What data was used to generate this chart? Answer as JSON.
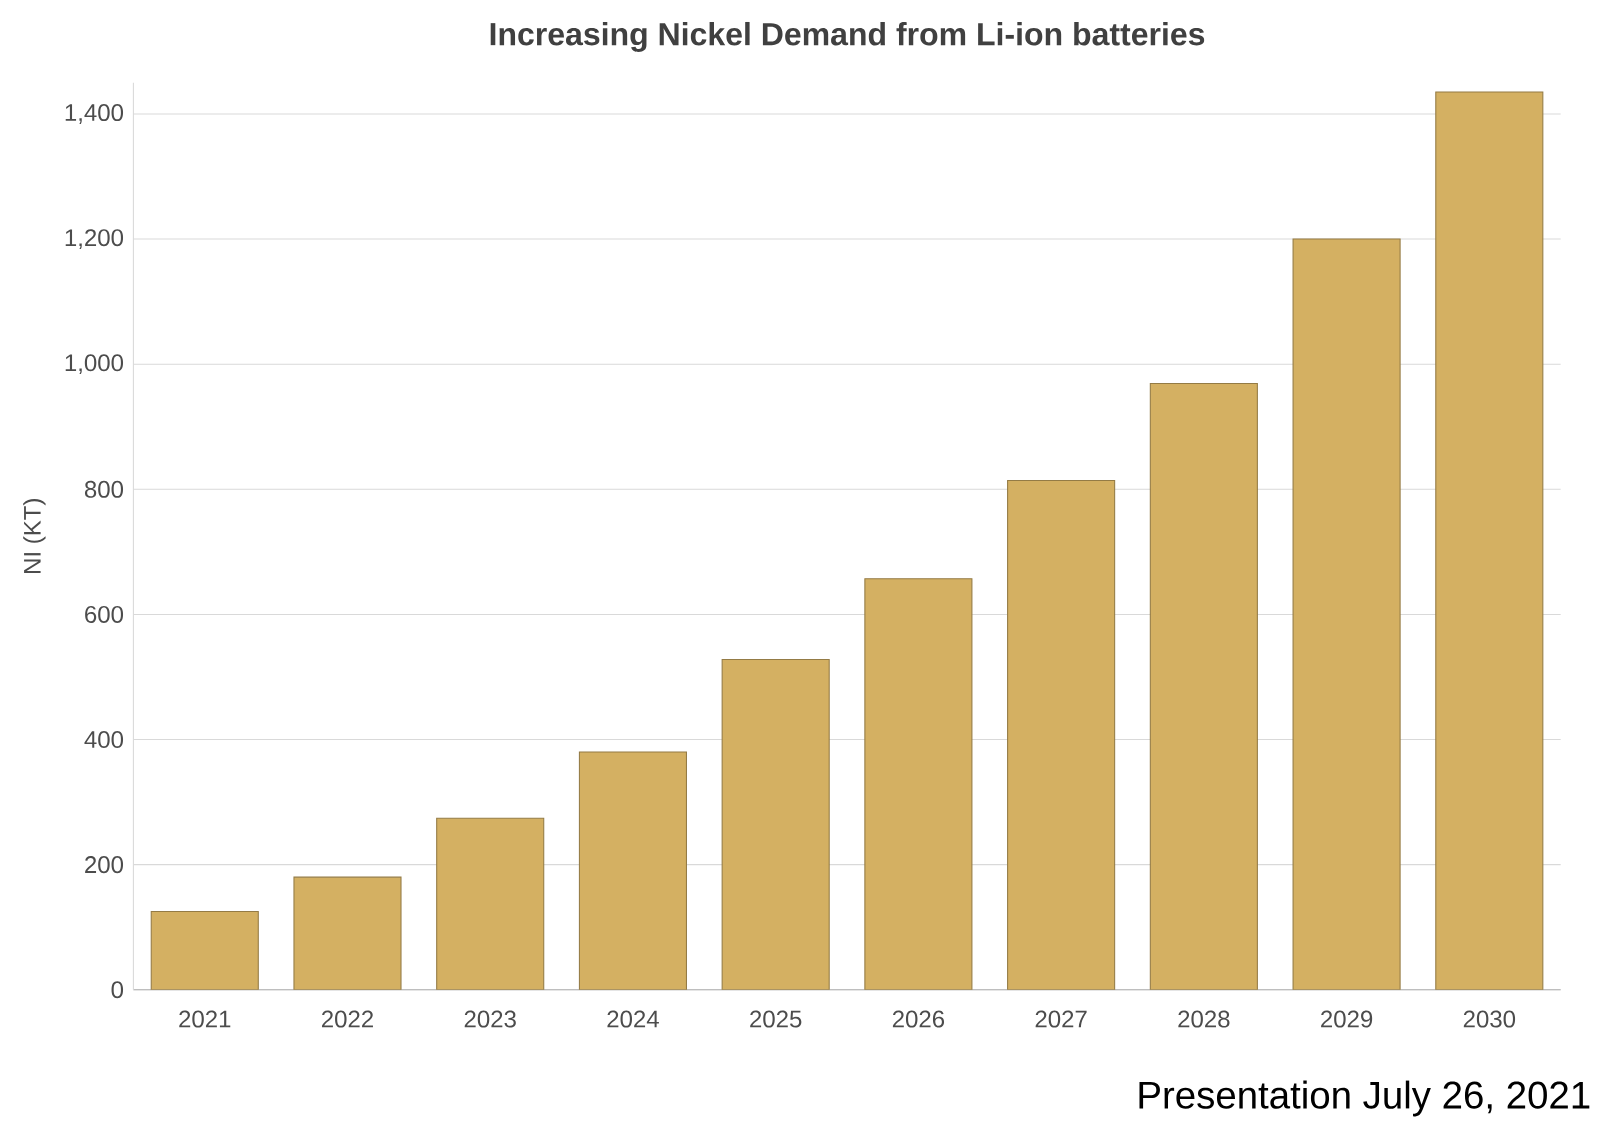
{
  "chart_data": {
    "type": "bar",
    "title": "Increasing Nickel Demand from Li-ion batteries",
    "ylabel": "NI (KT)",
    "categories": [
      "2021",
      "2022",
      "2023",
      "2024",
      "2025",
      "2026",
      "2027",
      "2028",
      "2029",
      "2030"
    ],
    "values": [
      125,
      180,
      274,
      380,
      528,
      657,
      814,
      969,
      1200,
      1435
    ],
    "color": "#d4b062",
    "ylim": [
      0,
      1450
    ],
    "yticks": [
      0,
      {
        "value": 200,
        "label": "200"
      },
      {
        "value": 400,
        "label": "400"
      },
      {
        "value": 600,
        "label": "600"
      },
      {
        "value": 800,
        "label": "800"
      },
      {
        "value": 1000,
        "label": "1,000"
      },
      {
        "value": 1200,
        "label": "1,200"
      },
      {
        "value": 1400,
        "label": "1,400"
      }
    ],
    "grid": "y",
    "annotations": [
      "Presentation July 26, 2021"
    ]
  }
}
